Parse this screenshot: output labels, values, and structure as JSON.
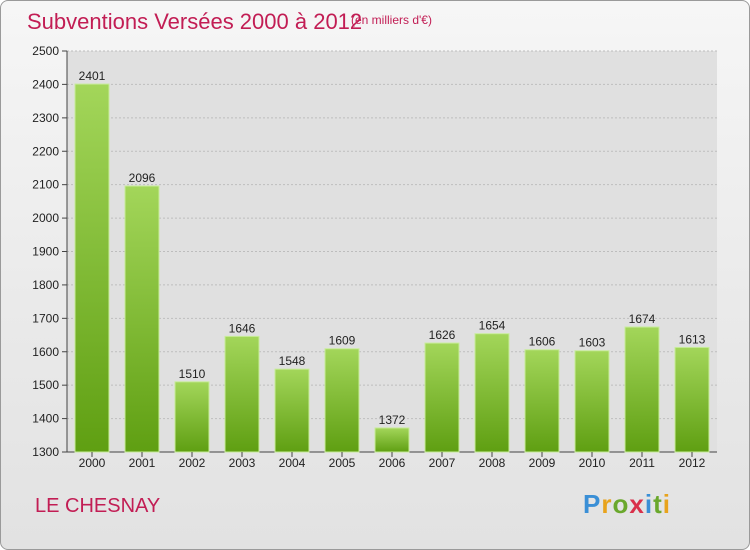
{
  "header": {
    "title": "Subventions Versées 2000 à 2012",
    "unit": "(en milliers d'€)"
  },
  "footer": {
    "commune": "LE CHESNAY",
    "logo_text": "Proxiti"
  },
  "colors": {
    "accent": "#c21d54",
    "bar_light": "#a3d65a",
    "bar_dark": "#5f9f12",
    "plot_bg": "#e0e0e0",
    "grid": "#bdbdbd"
  },
  "chart_data": {
    "type": "bar",
    "title": "Subventions Versées 2000 à 2012",
    "subtitle": "(en milliers d'€)",
    "xlabel": "",
    "ylabel": "",
    "categories": [
      "2000",
      "2001",
      "2002",
      "2003",
      "2004",
      "2005",
      "2006",
      "2007",
      "2008",
      "2009",
      "2010",
      "2011",
      "2012"
    ],
    "values": [
      2401,
      2096,
      1510,
      1646,
      1548,
      1609,
      1372,
      1626,
      1654,
      1606,
      1603,
      1674,
      1613
    ],
    "ylim": [
      1300,
      2500
    ],
    "yticks": [
      1300,
      1400,
      1500,
      1600,
      1700,
      1800,
      1900,
      2000,
      2100,
      2200,
      2300,
      2400,
      2500
    ],
    "grid": true,
    "legend": "none"
  }
}
